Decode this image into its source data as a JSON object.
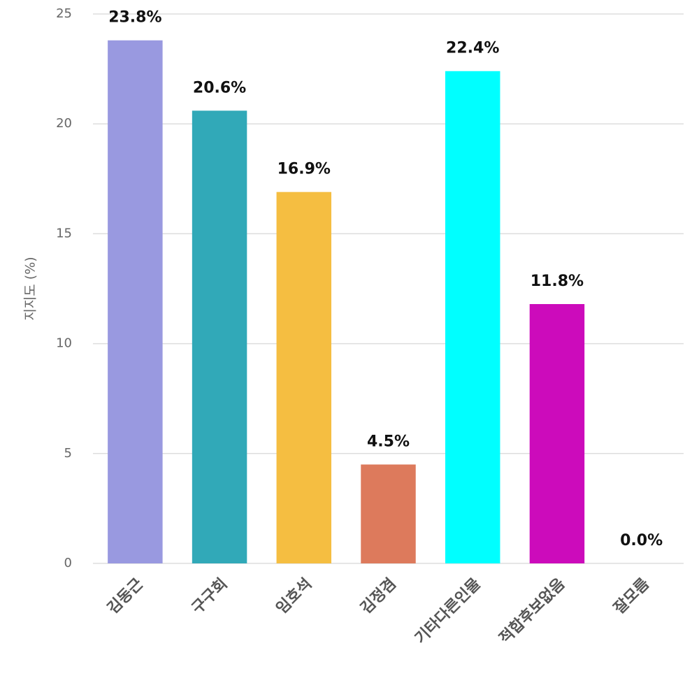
{
  "chart_data": {
    "type": "bar",
    "y_label": "지지도 (%)",
    "categories": [
      "김동근",
      "구구회",
      "임호석",
      "김정겸",
      "기타다른인물",
      "적합후보없음",
      "잘모름"
    ],
    "values": [
      23.8,
      20.6,
      16.9,
      4.5,
      22.4,
      11.8,
      0.0
    ],
    "value_labels": [
      "23.8%",
      "20.6%",
      "16.9%",
      "4.5%",
      "22.4%",
      "11.8%",
      "0.0%"
    ],
    "colors": [
      "#9999e0",
      "#31a9b8",
      "#f5be41",
      "#dd7a5c",
      "#00ffff",
      "#cc0bbb",
      "#7fbf7f"
    ],
    "ylim": [
      0,
      25
    ],
    "yticks": [
      0,
      5,
      10,
      15,
      20,
      25
    ],
    "grid": true
  }
}
